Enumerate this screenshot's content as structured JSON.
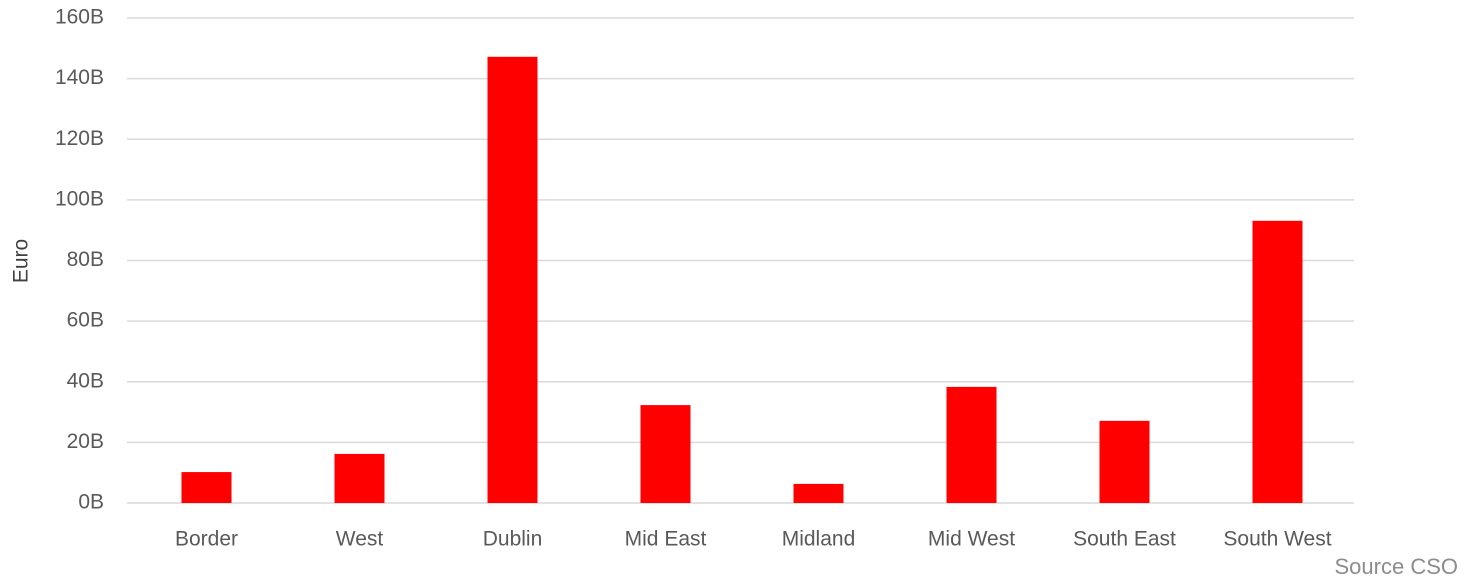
{
  "chart_data": {
    "type": "bar",
    "y_label": "Euro",
    "annotation": "Source CSO",
    "categories": [
      "Border",
      "West",
      "Dublin",
      "Mid East",
      "Midland",
      "Mid West",
      "South East",
      "South West"
    ],
    "values": [
      10.2,
      16.2,
      147.2,
      32.3,
      6.3,
      38.3,
      27.1,
      93.1
    ],
    "color": "#ff0000",
    "ylim": [
      0,
      160
    ],
    "yticks": [
      {
        "value": 0,
        "label": "0B"
      },
      {
        "value": 20,
        "label": "20B"
      },
      {
        "value": 40,
        "label": "40B"
      },
      {
        "value": 60,
        "label": "60B"
      },
      {
        "value": 80,
        "label": "80B"
      },
      {
        "value": 100,
        "label": "100B"
      },
      {
        "value": 120,
        "label": "120B"
      },
      {
        "value": 140,
        "label": "140B"
      },
      {
        "value": 160,
        "label": "160B"
      }
    ],
    "grid": true
  }
}
